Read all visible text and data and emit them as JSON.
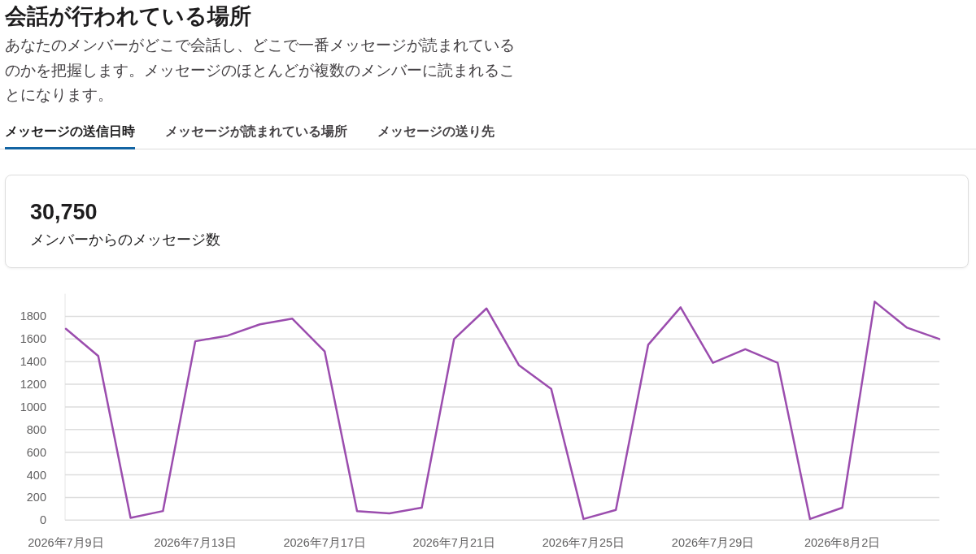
{
  "chart_data": [
    {
      "type": "other",
      "title": "会話が行われている場所",
      "subtitle": "あなたのメンバーがどこで会話し、どこで一番メッセージが読まれているのかを把握します。メッセージのほとんどが複数のメンバーに読まれることになります。",
      "annotations": [
        "メッセージの送信日時",
        "メッセージが読まれている場所",
        "メッセージの送り先"
      ]
    },
    {
      "type": "other",
      "title": "30,750",
      "subtitle": "メンバーからのメッセージ数"
    },
    {
      "type": "line",
      "x": [
        "2026-07-09",
        "2026-07-10",
        "2026-07-11",
        "2026-07-12",
        "2026-07-13",
        "2026-07-14",
        "2026-07-15",
        "2026-07-16",
        "2026-07-17",
        "2026-07-18",
        "2026-07-19",
        "2026-07-20",
        "2026-07-21",
        "2026-07-22",
        "2026-07-23",
        "2026-07-24",
        "2026-07-25",
        "2026-07-26",
        "2026-07-27",
        "2026-07-28",
        "2026-07-29",
        "2026-07-30",
        "2026-07-31",
        "2026-08-01",
        "2026-08-02",
        "2026-08-03",
        "2026-08-04",
        "2026-08-05"
      ],
      "series": [
        {
          "color": "#9b4dae",
          "values": [
            1690,
            1450,
            20,
            80,
            1580,
            1630,
            1730,
            1780,
            1490,
            80,
            60,
            110,
            1600,
            1870,
            1370,
            1160,
            10,
            90,
            1550,
            1880,
            1390,
            1510,
            1390,
            10,
            110,
            1930,
            1700,
            1600
          ]
        }
      ],
      "xlim": [
        "2026-07-09",
        "2026-08-05"
      ],
      "xticks": [
        {
          "value": "2026-07-09",
          "label": "2026年7月9日"
        },
        {
          "value": "2026-07-13",
          "label": "2026年7月13日"
        },
        {
          "value": "2026-07-17",
          "label": "2026年7月17日"
        },
        {
          "value": "2026-07-21",
          "label": "2026年7月21日"
        },
        {
          "value": "2026-07-25",
          "label": "2026年7月25日"
        },
        {
          "value": "2026-07-29",
          "label": "2026年7月29日"
        },
        {
          "value": "2026-08-02",
          "label": "2026年8月2日"
        }
      ],
      "ylim": [
        0,
        2000
      ],
      "yticks": [
        0,
        200,
        400,
        600,
        800,
        1000,
        1200,
        1400,
        1600,
        1800
      ],
      "grid": "y"
    }
  ]
}
